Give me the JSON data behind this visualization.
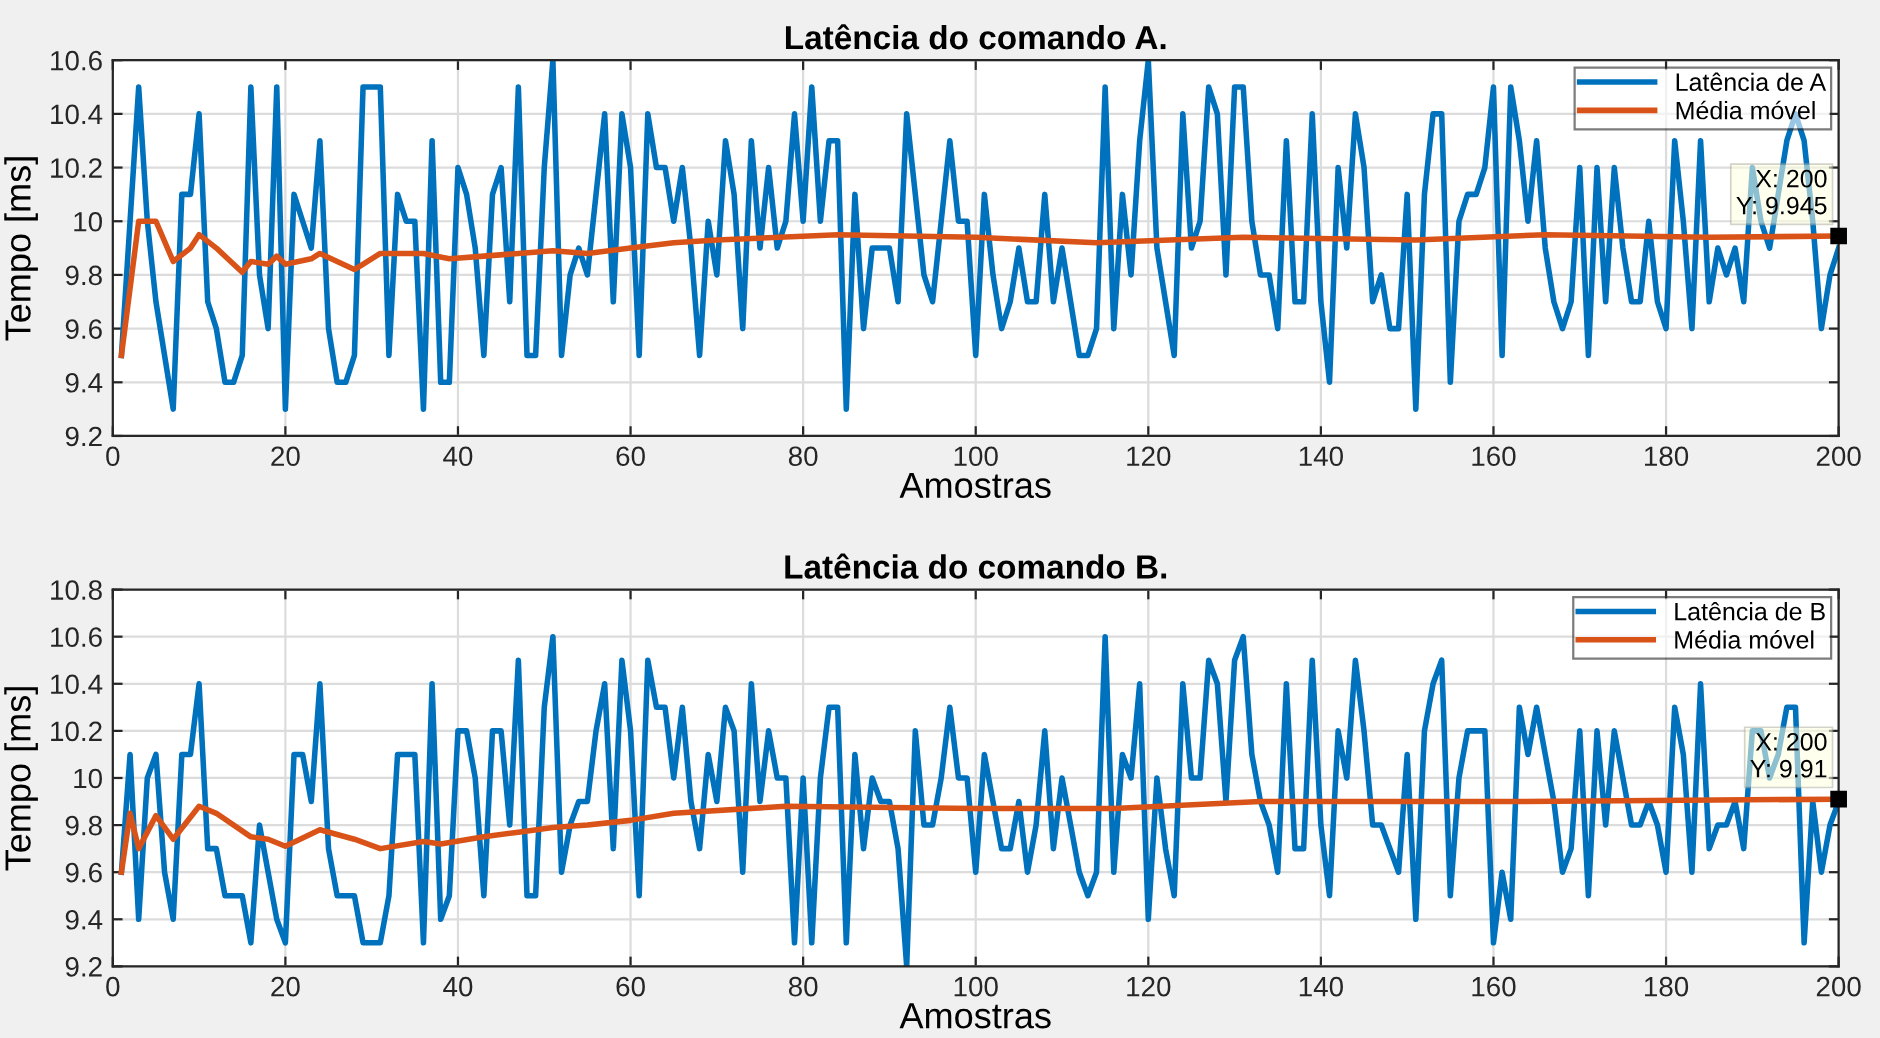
{
  "chart_data": [
    {
      "type": "line",
      "title": "Latência do comando A.",
      "xlabel": "Amostras",
      "ylabel": "Tempo [ms]",
      "xlim": [
        0,
        200
      ],
      "xticks": [
        0,
        20,
        40,
        60,
        80,
        100,
        120,
        140,
        160,
        180,
        200
      ],
      "ylim": [
        9.2,
        10.6
      ],
      "yticks": [
        9.2,
        9.4,
        9.6,
        9.8,
        10,
        10.2,
        10.4,
        10.6
      ],
      "grid": true,
      "legend": "top right",
      "line_style": "solid",
      "marker": "none",
      "annotations": [
        {
          "text": "X: 200\nY: 9.945",
          "x": 200,
          "y": 9.945
        }
      ],
      "series": [
        {
          "name": "Latência de A",
          "color": "#0072bd",
          "x": [
            1,
            2,
            3,
            4,
            5,
            6,
            7,
            8,
            9,
            10,
            11,
            12,
            13,
            14,
            15,
            16,
            17,
            18,
            19,
            20,
            21,
            22,
            23,
            24,
            25,
            26,
            27,
            28,
            29,
            30,
            31,
            32,
            33,
            34,
            35,
            36,
            37,
            38,
            39,
            40,
            41,
            42,
            43,
            44,
            45,
            46,
            47,
            48,
            49,
            50,
            51,
            52,
            53,
            54,
            55,
            56,
            57,
            58,
            59,
            60,
            61,
            62,
            63,
            64,
            65,
            66,
            67,
            68,
            69,
            70,
            71,
            72,
            73,
            74,
            75,
            76,
            77,
            78,
            79,
            80,
            81,
            82,
            83,
            84,
            85,
            86,
            87,
            88,
            89,
            90,
            91,
            92,
            93,
            94,
            95,
            96,
            97,
            98,
            99,
            100,
            101,
            102,
            103,
            104,
            105,
            106,
            107,
            108,
            109,
            110,
            111,
            112,
            113,
            114,
            115,
            116,
            117,
            118,
            119,
            120,
            121,
            122,
            123,
            124,
            125,
            126,
            127,
            128,
            129,
            130,
            131,
            132,
            133,
            134,
            135,
            136,
            137,
            138,
            139,
            140,
            141,
            142,
            143,
            144,
            145,
            146,
            147,
            148,
            149,
            150,
            151,
            152,
            153,
            154,
            155,
            156,
            157,
            158,
            159,
            160,
            161,
            162,
            163,
            164,
            165,
            166,
            167,
            168,
            169,
            170,
            171,
            172,
            173,
            174,
            175,
            176,
            177,
            178,
            179,
            180,
            181,
            182,
            183,
            184,
            185,
            186,
            187,
            188,
            189,
            190,
            191,
            192,
            193,
            194,
            195,
            196,
            197,
            198,
            199,
            200
          ],
          "values": [
            9.5,
            10.0,
            10.5,
            10.0,
            9.7,
            9.5,
            9.3,
            10.1,
            10.1,
            10.4,
            9.7,
            9.6,
            9.4,
            9.4,
            9.5,
            10.5,
            9.8,
            9.6,
            10.5,
            9.3,
            10.1,
            10.0,
            9.9,
            10.3,
            9.6,
            9.4,
            9.4,
            9.5,
            10.5,
            10.5,
            10.5,
            9.5,
            10.1,
            10.0,
            10.0,
            9.3,
            10.3,
            9.4,
            9.4,
            10.2,
            10.1,
            9.9,
            9.5,
            10.1,
            10.2,
            9.7,
            10.5,
            9.5,
            9.5,
            10.2,
            10.6,
            9.5,
            9.8,
            9.9,
            9.8,
            10.1,
            10.4,
            9.7,
            10.4,
            10.2,
            9.5,
            10.4,
            10.2,
            10.2,
            10.0,
            10.2,
            9.9,
            9.5,
            10.0,
            9.8,
            10.3,
            10.1,
            9.6,
            10.3,
            9.9,
            10.2,
            9.9,
            10.0,
            10.4,
            10.0,
            10.5,
            10.0,
            10.3,
            10.3,
            9.3,
            10.1,
            9.6,
            9.9,
            9.9,
            9.9,
            9.7,
            10.4,
            10.1,
            9.8,
            9.7,
            10.0,
            10.3,
            10.0,
            10.0,
            9.5,
            10.1,
            9.8,
            9.6,
            9.7,
            9.9,
            9.7,
            9.7,
            10.1,
            9.7,
            9.9,
            9.7,
            9.5,
            9.5,
            9.6,
            10.5,
            9.6,
            10.1,
            9.8,
            10.3,
            10.6,
            9.9,
            9.7,
            9.5,
            10.4,
            9.9,
            10.0,
            10.5,
            10.4,
            9.8,
            10.5,
            10.5,
            10.0,
            9.8,
            9.8,
            9.6,
            10.3,
            9.7,
            9.7,
            10.4,
            9.7,
            9.4,
            10.2,
            9.9,
            10.4,
            10.2,
            9.7,
            9.8,
            9.6,
            9.6,
            10.1,
            9.3,
            10.1,
            10.4,
            10.4,
            9.4,
            10.0,
            10.1,
            10.1,
            10.2,
            10.5,
            9.5,
            10.5,
            10.3,
            10.0,
            10.3,
            9.9,
            9.7,
            9.6,
            9.7,
            10.2,
            9.5,
            10.2,
            9.7,
            10.2,
            9.9,
            9.7,
            9.7,
            10.0,
            9.7,
            9.6,
            10.3,
            10.0,
            9.6,
            10.3,
            9.7,
            9.9,
            9.8,
            9.9,
            9.7,
            10.2,
            10.0,
            9.9,
            10.1,
            10.3,
            10.4,
            10.3,
            10.0,
            9.6,
            9.8,
            9.9
          ]
        },
        {
          "name": "Média móvel",
          "color": "#d95319",
          "x": [
            1,
            3,
            5,
            7,
            9,
            10,
            12,
            15,
            16,
            18,
            19,
            20,
            23,
            24,
            28,
            31,
            36,
            39,
            43,
            47,
            51,
            55,
            60,
            65,
            70,
            84,
            100,
            114,
            131,
            151,
            166,
            185,
            200
          ],
          "values": [
            9.5,
            10.0,
            10.0,
            9.85,
            9.9,
            9.95,
            9.9,
            9.81,
            9.85,
            9.84,
            9.87,
            9.84,
            9.86,
            9.88,
            9.82,
            9.88,
            9.88,
            9.86,
            9.87,
            9.88,
            9.89,
            9.88,
            9.9,
            9.92,
            9.93,
            9.95,
            9.94,
            9.92,
            9.94,
            9.93,
            9.95,
            9.94,
            9.945
          ]
        }
      ]
    },
    {
      "type": "line",
      "title": "Latência do comando B.",
      "xlabel": "Amostras",
      "ylabel": "Tempo [ms]",
      "xlim": [
        0,
        200
      ],
      "xticks": [
        0,
        20,
        40,
        60,
        80,
        100,
        120,
        140,
        160,
        180,
        200
      ],
      "ylim": [
        9.2,
        10.8
      ],
      "yticks": [
        9.2,
        9.4,
        9.6,
        9.8,
        10,
        10.2,
        10.4,
        10.6,
        10.8
      ],
      "grid": true,
      "legend": "top right",
      "line_style": "solid",
      "marker": "none",
      "annotations": [
        {
          "text": "X: 200\nY: 9.91",
          "x": 200,
          "y": 9.91
        }
      ],
      "series": [
        {
          "name": "Latência de B",
          "color": "#0072bd",
          "x": [
            1,
            2,
            3,
            4,
            5,
            6,
            7,
            8,
            9,
            10,
            11,
            12,
            13,
            14,
            15,
            16,
            17,
            18,
            19,
            20,
            21,
            22,
            23,
            24,
            25,
            26,
            27,
            28,
            29,
            30,
            31,
            32,
            33,
            34,
            35,
            36,
            37,
            38,
            39,
            40,
            41,
            42,
            43,
            44,
            45,
            46,
            47,
            48,
            49,
            50,
            51,
            52,
            53,
            54,
            55,
            56,
            57,
            58,
            59,
            60,
            61,
            62,
            63,
            64,
            65,
            66,
            67,
            68,
            69,
            70,
            71,
            72,
            73,
            74,
            75,
            76,
            77,
            78,
            79,
            80,
            81,
            82,
            83,
            84,
            85,
            86,
            87,
            88,
            89,
            90,
            91,
            92,
            93,
            94,
            95,
            96,
            97,
            98,
            99,
            100,
            101,
            102,
            103,
            104,
            105,
            106,
            107,
            108,
            109,
            110,
            111,
            112,
            113,
            114,
            115,
            116,
            117,
            118,
            119,
            120,
            121,
            122,
            123,
            124,
            125,
            126,
            127,
            128,
            129,
            130,
            131,
            132,
            133,
            134,
            135,
            136,
            137,
            138,
            139,
            140,
            141,
            142,
            143,
            144,
            145,
            146,
            147,
            148,
            149,
            150,
            151,
            152,
            153,
            154,
            155,
            156,
            157,
            158,
            159,
            160,
            161,
            162,
            163,
            164,
            165,
            166,
            167,
            168,
            169,
            170,
            171,
            172,
            173,
            174,
            175,
            176,
            177,
            178,
            179,
            180,
            181,
            182,
            183,
            184,
            185,
            186,
            187,
            188,
            189,
            190,
            191,
            192,
            193,
            194,
            195,
            196,
            197,
            198,
            199,
            200
          ],
          "values": [
            9.6,
            10.1,
            9.4,
            10.0,
            10.1,
            9.6,
            9.4,
            10.1,
            10.1,
            10.4,
            9.7,
            9.7,
            9.5,
            9.5,
            9.5,
            9.3,
            9.8,
            9.6,
            9.4,
            9.3,
            10.1,
            10.1,
            9.9,
            10.4,
            9.7,
            9.5,
            9.5,
            9.5,
            9.3,
            9.3,
            9.3,
            9.5,
            10.1,
            10.1,
            10.1,
            9.3,
            10.4,
            9.4,
            9.5,
            10.2,
            10.2,
            10.0,
            9.5,
            10.2,
            10.2,
            9.8,
            10.5,
            9.5,
            9.5,
            10.3,
            10.6,
            9.6,
            9.8,
            9.9,
            9.9,
            10.2,
            10.4,
            9.7,
            10.5,
            10.2,
            9.5,
            10.5,
            10.3,
            10.3,
            10.0,
            10.3,
            9.9,
            9.7,
            10.1,
            9.9,
            10.3,
            10.2,
            9.6,
            10.4,
            9.9,
            10.2,
            10.0,
            10.0,
            9.3,
            10.0,
            9.3,
            10.0,
            10.3,
            10.3,
            9.3,
            10.1,
            9.7,
            10.0,
            9.9,
            9.9,
            9.7,
            9.2,
            10.2,
            9.8,
            9.8,
            10.0,
            10.3,
            10.0,
            10.0,
            9.6,
            10.1,
            9.9,
            9.7,
            9.7,
            9.9,
            9.6,
            9.8,
            10.2,
            9.7,
            10.0,
            9.8,
            9.6,
            9.5,
            9.6,
            10.6,
            9.6,
            10.1,
            10.0,
            10.4,
            9.4,
            10.0,
            9.7,
            9.5,
            10.4,
            10.0,
            10.0,
            10.5,
            10.4,
            9.9,
            10.5,
            10.6,
            10.1,
            9.9,
            9.8,
            9.6,
            10.4,
            9.7,
            9.7,
            10.5,
            9.8,
            9.5,
            10.2,
            10.0,
            10.5,
            10.2,
            9.8,
            9.8,
            9.7,
            9.6,
            10.1,
            9.4,
            10.2,
            10.4,
            10.5,
            9.5,
            10.0,
            10.2,
            10.2,
            10.2,
            9.3,
            9.6,
            9.4,
            10.3,
            10.1,
            10.3,
            10.1,
            9.9,
            9.6,
            9.7,
            10.2,
            9.5,
            10.2,
            9.8,
            10.2,
            10.0,
            9.8,
            9.8,
            9.9,
            9.8,
            9.6,
            10.3,
            10.1,
            9.6,
            10.4,
            9.7,
            9.8,
            9.8,
            9.9,
            9.7,
            10.2,
            10.2,
            10.0,
            10.1,
            10.3,
            10.3,
            9.3,
            9.9,
            9.6,
            9.8,
            9.9
          ]
        },
        {
          "name": "Média móvel",
          "color": "#d95319",
          "x": [
            1,
            2,
            3,
            5,
            7,
            10,
            12,
            16,
            18,
            20,
            24,
            28,
            31,
            36,
            38,
            43,
            47,
            51,
            55,
            60,
            65,
            78,
            100,
            116,
            133,
            162,
            200
          ],
          "values": [
            9.6,
            9.85,
            9.7,
            9.84,
            9.74,
            9.88,
            9.85,
            9.75,
            9.74,
            9.71,
            9.78,
            9.74,
            9.7,
            9.73,
            9.72,
            9.75,
            9.77,
            9.79,
            9.8,
            9.82,
            9.85,
            9.88,
            9.87,
            9.87,
            9.9,
            9.9,
            9.91
          ]
        }
      ]
    }
  ]
}
